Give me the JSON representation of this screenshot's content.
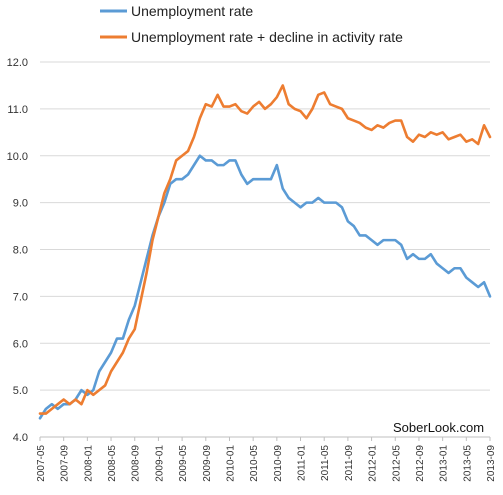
{
  "chart_data": {
    "type": "line",
    "title": "",
    "xlabel": "",
    "ylabel": "",
    "ylim": [
      4.0,
      12.0
    ],
    "yticks": [
      "4.0",
      "5.0",
      "6.0",
      "7.0",
      "8.0",
      "9.0",
      "10.0",
      "11.0",
      "12.0"
    ],
    "xticks": [
      "2007-05",
      "2007-09",
      "2008-01",
      "2008-05",
      "2008-09",
      "2009-01",
      "2009-05",
      "2009-09",
      "2010-01",
      "2010-05",
      "2010-09",
      "2011-01",
      "2011-05",
      "2011-09",
      "2012-01",
      "2012-05",
      "2012-09",
      "2013-01",
      "2013-05",
      "2013-09"
    ],
    "x_start": "2007-05",
    "x_end": "2013-11",
    "grid": "horizontal",
    "legend_position": "top",
    "watermark": "SoberLook.com",
    "series": [
      {
        "name": "Unemployment rate",
        "color": "#5b9bd5",
        "values": [
          4.4,
          4.6,
          4.7,
          4.6,
          4.7,
          4.7,
          4.8,
          5.0,
          4.9,
          5.0,
          5.4,
          5.6,
          5.8,
          6.1,
          6.1,
          6.5,
          6.8,
          7.3,
          7.8,
          8.3,
          8.7,
          9.0,
          9.4,
          9.5,
          9.5,
          9.6,
          9.8,
          10.0,
          9.9,
          9.9,
          9.8,
          9.8,
          9.9,
          9.9,
          9.6,
          9.4,
          9.5,
          9.5,
          9.5,
          9.5,
          9.8,
          9.3,
          9.1,
          9.0,
          8.9,
          9.0,
          9.0,
          9.1,
          9.0,
          9.0,
          9.0,
          8.9,
          8.6,
          8.5,
          8.3,
          8.3,
          8.2,
          8.1,
          8.2,
          8.2,
          8.2,
          8.1,
          7.8,
          7.9,
          7.8,
          7.8,
          7.9,
          7.7,
          7.6,
          7.5,
          7.6,
          7.6,
          7.4,
          7.3,
          7.2,
          7.3,
          7.0
        ]
      },
      {
        "name": "Unemployment rate + decline in activity rate",
        "color": "#ed7d31",
        "values": [
          4.5,
          4.5,
          4.6,
          4.7,
          4.8,
          4.7,
          4.8,
          4.7,
          5.0,
          4.9,
          5.0,
          5.1,
          5.4,
          5.6,
          5.8,
          6.1,
          6.3,
          6.9,
          7.5,
          8.2,
          8.7,
          9.2,
          9.5,
          9.9,
          10.0,
          10.1,
          10.4,
          10.8,
          11.1,
          11.05,
          11.3,
          11.05,
          11.05,
          11.1,
          10.95,
          10.9,
          11.05,
          11.15,
          11.0,
          11.1,
          11.25,
          11.5,
          11.1,
          11.0,
          10.95,
          10.8,
          11.0,
          11.3,
          11.35,
          11.1,
          11.05,
          11.0,
          10.8,
          10.75,
          10.7,
          10.6,
          10.55,
          10.65,
          10.6,
          10.7,
          10.75,
          10.75,
          10.4,
          10.3,
          10.45,
          10.4,
          10.5,
          10.45,
          10.5,
          10.35,
          10.4,
          10.45,
          10.3,
          10.35,
          10.25,
          10.65,
          10.4
        ]
      }
    ]
  }
}
